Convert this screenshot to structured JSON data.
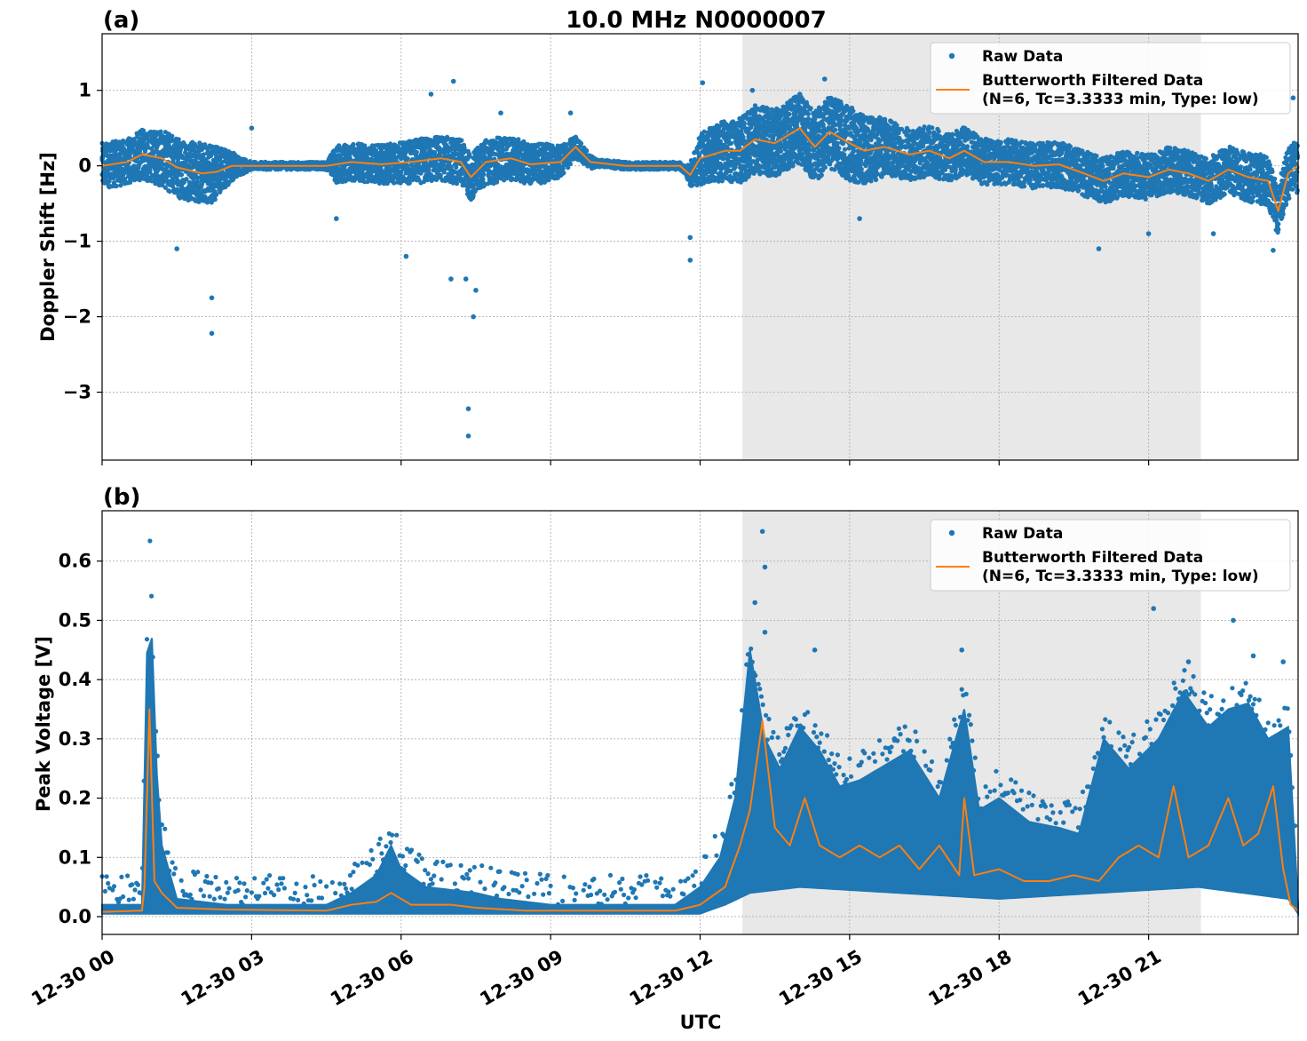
{
  "title": "10.0 MHz N0000007",
  "xlabel": "UTC",
  "x_tick_labels": [
    "12-30 00",
    "12-30 03",
    "12-30 06",
    "12-30 09",
    "12-30 12",
    "12-30 15",
    "12-30 18",
    "12-30 21"
  ],
  "colors": {
    "raw": "#1f77b4",
    "filtered": "#ff7f0e",
    "shade": "#e8e8e8",
    "grid": "#b0b0b0"
  },
  "legend": {
    "raw_label": "Raw Data",
    "filtered_line1": "Butterworth Filtered Data",
    "filtered_line2": "(N=6, Tc=3.3333 min, Type: low)"
  },
  "chart_data": [
    {
      "type": "scatter",
      "panel_label": "(a)",
      "ylabel": "Doppler Shift [Hz]",
      "x_unit": "hours UTC on 12-30",
      "xlim": [
        0,
        24
      ],
      "ylim": [
        -3.9,
        1.75
      ],
      "yticks": [
        1,
        0,
        -1,
        -2,
        -3
      ],
      "ytick_labels": [
        "1",
        "0",
        "−1",
        "−2",
        "−3"
      ],
      "shaded_region_x": [
        12.85,
        22.05
      ],
      "grid": true,
      "legend_placement": "top-right",
      "series": [
        {
          "name": "Raw Data",
          "style": "dots",
          "spread": [
            [
              0,
              0.3
            ],
            [
              0.5,
              0.3
            ],
            [
              1,
              0.35
            ],
            [
              1.5,
              0.4
            ],
            [
              2.2,
              0.4
            ],
            [
              2.7,
              0.15
            ],
            [
              3,
              0.05
            ],
            [
              4.5,
              0.05
            ],
            [
              4.7,
              0.25
            ],
            [
              5.5,
              0.25
            ],
            [
              6.5,
              0.3
            ],
            [
              7.3,
              0.3
            ],
            [
              8,
              0.3
            ],
            [
              9,
              0.25
            ],
            [
              10,
              0.05
            ],
            [
              11.7,
              0.05
            ],
            [
              12,
              0.35
            ],
            [
              13,
              0.45
            ],
            [
              14,
              0.45
            ],
            [
              15,
              0.5
            ],
            [
              16,
              0.35
            ],
            [
              18,
              0.3
            ],
            [
              20,
              0.3
            ],
            [
              22,
              0.3
            ],
            [
              24,
              0.35
            ]
          ],
          "outliers": [
            [
              1.5,
              -1.1
            ],
            [
              2.2,
              -1.75
            ],
            [
              2.2,
              -2.22
            ],
            [
              3.0,
              0.5
            ],
            [
              4.7,
              -0.7
            ],
            [
              6.1,
              -1.2
            ],
            [
              6.6,
              0.95
            ],
            [
              7.0,
              -1.5
            ],
            [
              7.05,
              1.12
            ],
            [
              7.3,
              -1.5
            ],
            [
              7.35,
              -3.22
            ],
            [
              7.35,
              -3.58
            ],
            [
              7.45,
              -2.0
            ],
            [
              7.5,
              -1.65
            ],
            [
              8.0,
              0.7
            ],
            [
              9.4,
              0.7
            ],
            [
              11.8,
              -1.25
            ],
            [
              11.8,
              -0.95
            ],
            [
              12.05,
              1.1
            ],
            [
              13.05,
              1.0
            ],
            [
              14.0,
              0.95
            ],
            [
              14.5,
              1.15
            ],
            [
              15.2,
              -0.7
            ],
            [
              20.0,
              -1.1
            ],
            [
              21.0,
              -0.9
            ],
            [
              22.3,
              -0.9
            ],
            [
              23.5,
              -1.12
            ],
            [
              23.9,
              0.9
            ]
          ]
        },
        {
          "name": "Butterworth Filtered Data",
          "style": "line",
          "points": [
            [
              0,
              0
            ],
            [
              0.5,
              0.05
            ],
            [
              0.8,
              0.15
            ],
            [
              1.2,
              0.1
            ],
            [
              1.5,
              -0.02
            ],
            [
              2.0,
              -0.1
            ],
            [
              2.3,
              -0.08
            ],
            [
              2.6,
              0
            ],
            [
              3.0,
              0
            ],
            [
              4.5,
              0
            ],
            [
              5.0,
              0.05
            ],
            [
              5.6,
              0.02
            ],
            [
              6.2,
              0.05
            ],
            [
              6.8,
              0.1
            ],
            [
              7.2,
              0.05
            ],
            [
              7.4,
              -0.15
            ],
            [
              7.7,
              0.05
            ],
            [
              8.2,
              0.1
            ],
            [
              8.6,
              0.02
            ],
            [
              9.2,
              0.05
            ],
            [
              9.5,
              0.25
            ],
            [
              9.8,
              0.05
            ],
            [
              10.5,
              0
            ],
            [
              11.6,
              0
            ],
            [
              11.8,
              -0.12
            ],
            [
              12.0,
              0.1
            ],
            [
              12.5,
              0.2
            ],
            [
              12.8,
              0.2
            ],
            [
              13.1,
              0.35
            ],
            [
              13.5,
              0.3
            ],
            [
              14.0,
              0.5
            ],
            [
              14.3,
              0.25
            ],
            [
              14.6,
              0.45
            ],
            [
              15.0,
              0.3
            ],
            [
              15.3,
              0.2
            ],
            [
              15.7,
              0.25
            ],
            [
              16.2,
              0.15
            ],
            [
              16.6,
              0.2
            ],
            [
              17.0,
              0.1
            ],
            [
              17.3,
              0.2
            ],
            [
              17.7,
              0.05
            ],
            [
              18.2,
              0.05
            ],
            [
              18.7,
              0
            ],
            [
              19.2,
              0.02
            ],
            [
              19.7,
              -0.1
            ],
            [
              20.1,
              -0.2
            ],
            [
              20.5,
              -0.1
            ],
            [
              21.0,
              -0.15
            ],
            [
              21.4,
              -0.05
            ],
            [
              21.8,
              -0.1
            ],
            [
              22.2,
              -0.2
            ],
            [
              22.6,
              -0.05
            ],
            [
              23.0,
              -0.15
            ],
            [
              23.4,
              -0.2
            ],
            [
              23.6,
              -0.6
            ],
            [
              23.8,
              -0.1
            ],
            [
              24,
              0
            ]
          ]
        }
      ]
    },
    {
      "type": "scatter",
      "panel_label": "(b)",
      "ylabel": "Peak Voltage [V]",
      "x_unit": "hours UTC on 12-30",
      "xlim": [
        0,
        24
      ],
      "ylim": [
        -0.03,
        0.685
      ],
      "yticks": [
        0.0,
        0.1,
        0.2,
        0.3,
        0.4,
        0.5,
        0.6
      ],
      "ytick_labels": [
        "0.0",
        "0.1",
        "0.2",
        "0.3",
        "0.4",
        "0.5",
        "0.6"
      ],
      "shaded_region_x": [
        12.85,
        22.05
      ],
      "grid": true,
      "legend_placement": "top-right",
      "series": [
        {
          "name": "Raw Data",
          "style": "band",
          "upper": [
            [
              0,
              0.02
            ],
            [
              0.8,
              0.02
            ],
            [
              0.85,
              0.25
            ],
            [
              0.95,
              0.64
            ],
            [
              1.05,
              0.3
            ],
            [
              1.2,
              0.12
            ],
            [
              1.5,
              0.03
            ],
            [
              2.5,
              0.02
            ],
            [
              4.5,
              0.02
            ],
            [
              5.0,
              0.04
            ],
            [
              5.5,
              0.07
            ],
            [
              5.8,
              0.12
            ],
            [
              6.0,
              0.08
            ],
            [
              6.5,
              0.05
            ],
            [
              7.5,
              0.04
            ],
            [
              8.0,
              0.03
            ],
            [
              9,
              0.02
            ],
            [
              11.5,
              0.02
            ],
            [
              12.0,
              0.05
            ],
            [
              12.4,
              0.1
            ],
            [
              12.7,
              0.2
            ],
            [
              13.0,
              0.45
            ],
            [
              13.3,
              0.3
            ],
            [
              13.6,
              0.25
            ],
            [
              14.0,
              0.32
            ],
            [
              14.4,
              0.28
            ],
            [
              14.8,
              0.22
            ],
            [
              15.2,
              0.23
            ],
            [
              15.6,
              0.25
            ],
            [
              16.2,
              0.28
            ],
            [
              16.8,
              0.2
            ],
            [
              17.3,
              0.35
            ],
            [
              17.6,
              0.18
            ],
            [
              18.0,
              0.2
            ],
            [
              18.6,
              0.16
            ],
            [
              19.2,
              0.15
            ],
            [
              19.6,
              0.14
            ],
            [
              20.1,
              0.3
            ],
            [
              20.6,
              0.25
            ],
            [
              21.2,
              0.3
            ],
            [
              21.7,
              0.38
            ],
            [
              22.2,
              0.32
            ],
            [
              22.6,
              0.35
            ],
            [
              23.0,
              0.36
            ],
            [
              23.4,
              0.3
            ],
            [
              23.8,
              0.32
            ],
            [
              24,
              0.02
            ]
          ],
          "lower": [
            [
              0,
              0.005
            ],
            [
              12.0,
              0.005
            ],
            [
              12.5,
              0.02
            ],
            [
              13.0,
              0.04
            ],
            [
              14.0,
              0.05
            ],
            [
              16.0,
              0.04
            ],
            [
              18.0,
              0.03
            ],
            [
              20.0,
              0.04
            ],
            [
              22.0,
              0.05
            ],
            [
              23.8,
              0.03
            ],
            [
              24,
              0.005
            ]
          ],
          "outliers": [
            [
              13.25,
              0.65
            ],
            [
              13.3,
              0.59
            ],
            [
              13.1,
              0.53
            ],
            [
              13.3,
              0.48
            ],
            [
              14.3,
              0.45
            ],
            [
              15.9,
              0.3
            ],
            [
              17.25,
              0.45
            ],
            [
              21.1,
              0.52
            ],
            [
              21.8,
              0.43
            ],
            [
              22.7,
              0.5
            ],
            [
              23.1,
              0.44
            ],
            [
              23.7,
              0.43
            ]
          ]
        },
        {
          "name": "Butterworth Filtered Data",
          "style": "line",
          "points": [
            [
              0,
              0.008
            ],
            [
              0.8,
              0.01
            ],
            [
              0.85,
              0.05
            ],
            [
              0.95,
              0.35
            ],
            [
              1.05,
              0.06
            ],
            [
              1.2,
              0.04
            ],
            [
              1.5,
              0.015
            ],
            [
              2.5,
              0.012
            ],
            [
              4.5,
              0.01
            ],
            [
              5.0,
              0.02
            ],
            [
              5.5,
              0.025
            ],
            [
              5.8,
              0.04
            ],
            [
              6.2,
              0.02
            ],
            [
              7.0,
              0.02
            ],
            [
              7.5,
              0.015
            ],
            [
              8.5,
              0.01
            ],
            [
              11.5,
              0.01
            ],
            [
              12.0,
              0.02
            ],
            [
              12.5,
              0.05
            ],
            [
              12.8,
              0.12
            ],
            [
              13.0,
              0.18
            ],
            [
              13.25,
              0.33
            ],
            [
              13.5,
              0.15
            ],
            [
              13.8,
              0.12
            ],
            [
              14.1,
              0.2
            ],
            [
              14.4,
              0.12
            ],
            [
              14.8,
              0.1
            ],
            [
              15.2,
              0.12
            ],
            [
              15.6,
              0.1
            ],
            [
              16.0,
              0.12
            ],
            [
              16.4,
              0.08
            ],
            [
              16.8,
              0.12
            ],
            [
              17.2,
              0.07
            ],
            [
              17.3,
              0.2
            ],
            [
              17.5,
              0.07
            ],
            [
              18.0,
              0.08
            ],
            [
              18.5,
              0.06
            ],
            [
              19.0,
              0.06
            ],
            [
              19.5,
              0.07
            ],
            [
              20.0,
              0.06
            ],
            [
              20.4,
              0.1
            ],
            [
              20.8,
              0.12
            ],
            [
              21.2,
              0.1
            ],
            [
              21.5,
              0.22
            ],
            [
              21.8,
              0.1
            ],
            [
              22.2,
              0.12
            ],
            [
              22.6,
              0.2
            ],
            [
              22.9,
              0.12
            ],
            [
              23.2,
              0.14
            ],
            [
              23.5,
              0.22
            ],
            [
              23.7,
              0.08
            ],
            [
              23.85,
              0.02
            ],
            [
              24,
              0.01
            ]
          ]
        }
      ]
    }
  ]
}
